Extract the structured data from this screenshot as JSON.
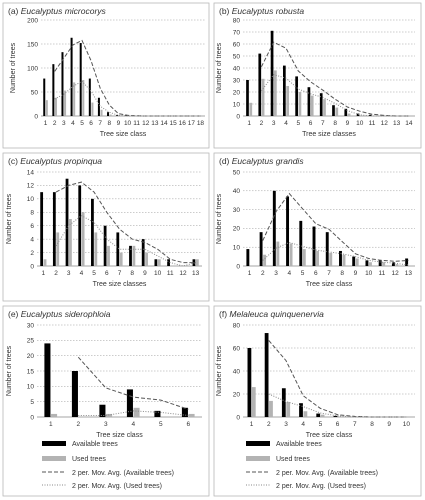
{
  "figure": {
    "legend": {
      "available": "Available trees",
      "used": "Used trees",
      "avg_available": "2 per. Mov. Avg. (Available trees)",
      "avg_used": "2 per. Mov. Avg. (Used trees)"
    }
  },
  "chart_data": [
    {
      "type": "bar",
      "panel_letter": "(a)",
      "species": "Eucalyptus microcorys",
      "xlabel": "Tree size class",
      "ylabel": "Number of trees",
      "ylim": [
        0,
        200
      ],
      "yticks": [
        0,
        50,
        100,
        150,
        200
      ],
      "categories": [
        "1",
        "2",
        "3",
        "4",
        "5",
        "6",
        "7",
        "8",
        "9",
        "10",
        "11",
        "12",
        "13",
        "14",
        "15",
        "16",
        "17",
        "18"
      ],
      "series": [
        {
          "name": "Available trees",
          "values": [
            78,
            108,
            133,
            163,
            152,
            78,
            38,
            8,
            2,
            1,
            0,
            0,
            0,
            0,
            0,
            0,
            0,
            0
          ]
        },
        {
          "name": "Used trees",
          "values": [
            33,
            38,
            53,
            70,
            75,
            28,
            13,
            3,
            0,
            0,
            0,
            0,
            0,
            0,
            0,
            0,
            0,
            0
          ]
        }
      ],
      "grid": true
    },
    {
      "type": "bar",
      "panel_letter": "(b)",
      "species": "Eucalyptus robusta",
      "xlabel": "Tree size classes",
      "ylabel": "Number of trees",
      "ylim": [
        0,
        80
      ],
      "yticks": [
        0,
        10,
        20,
        30,
        40,
        50,
        60,
        70,
        80
      ],
      "categories": [
        "1",
        "2",
        "3",
        "4",
        "5",
        "6",
        "7",
        "8",
        "9",
        "10",
        "11",
        "12",
        "13",
        "14"
      ],
      "series": [
        {
          "name": "Available trees",
          "values": [
            30,
            52,
            71,
            42,
            33,
            24,
            19,
            9,
            6,
            2,
            1,
            0,
            0,
            0
          ]
        },
        {
          "name": "Used trees",
          "values": [
            11,
            31,
            38,
            25,
            20,
            17,
            14,
            7,
            2,
            0,
            0,
            0,
            0,
            0
          ]
        }
      ],
      "grid": true
    },
    {
      "type": "bar",
      "panel_letter": "(c)",
      "species": "Eucalyptus propinqua",
      "xlabel": "Tree size classes",
      "ylabel": "Number of trees",
      "ylim": [
        0,
        14
      ],
      "yticks": [
        0,
        2,
        4,
        6,
        8,
        10,
        12,
        14
      ],
      "categories": [
        "1",
        "2",
        "3",
        "4",
        "5",
        "6",
        "7",
        "8",
        "9",
        "10",
        "11",
        "12",
        "13"
      ],
      "series": [
        {
          "name": "Available trees",
          "values": [
            11,
            11,
            13,
            12,
            10,
            6,
            5,
            3,
            4,
            1,
            1,
            0,
            1
          ]
        },
        {
          "name": "Used trees",
          "values": [
            1,
            5,
            7,
            8,
            5,
            3,
            2,
            3,
            2,
            1,
            0,
            0,
            1
          ]
        }
      ],
      "grid": true
    },
    {
      "type": "bar",
      "panel_letter": "(d)",
      "species": "Eucalyptus grandis",
      "xlabel": "Tree size class",
      "ylabel": "Number of trees",
      "ylim": [
        0,
        50
      ],
      "yticks": [
        0,
        10,
        20,
        30,
        40,
        50
      ],
      "categories": [
        "1",
        "2",
        "3",
        "4",
        "5",
        "6",
        "7",
        "8",
        "9",
        "10",
        "11",
        "12",
        "13"
      ],
      "series": [
        {
          "name": "Available trees",
          "values": [
            9,
            18,
            40,
            37,
            24,
            21,
            18,
            8,
            5,
            3,
            3,
            2,
            4
          ]
        },
        {
          "name": "Used trees",
          "values": [
            0,
            6,
            13,
            12,
            9,
            8,
            7,
            6,
            4,
            2,
            2,
            1,
            0
          ]
        }
      ],
      "grid": true
    },
    {
      "type": "bar",
      "panel_letter": "(e)",
      "species": "Eucalyptus siderophloia",
      "xlabel": "Tree size class",
      "ylabel": "Number of trees",
      "ylim": [
        0,
        30
      ],
      "yticks": [
        0,
        5,
        10,
        15,
        20,
        25,
        30
      ],
      "categories": [
        "1",
        "2",
        "3",
        "4",
        "5",
        "6"
      ],
      "series": [
        {
          "name": "Available trees",
          "values": [
            24,
            15,
            4,
            9,
            2,
            3
          ]
        },
        {
          "name": "Used trees",
          "values": [
            1,
            0,
            1,
            3,
            0,
            1
          ]
        }
      ],
      "grid": true
    },
    {
      "type": "bar",
      "panel_letter": "(f)",
      "species": "Melaleuca quinquenervia",
      "xlabel": "Tree size class",
      "ylabel": "Number of trees",
      "ylim": [
        0,
        80
      ],
      "yticks": [
        0,
        20,
        40,
        60,
        80
      ],
      "categories": [
        "1",
        "2",
        "3",
        "4",
        "5",
        "6",
        "7",
        "8",
        "9",
        "10"
      ],
      "series": [
        {
          "name": "Available trees",
          "values": [
            60,
            73,
            25,
            12,
            3,
            1,
            0,
            0,
            0,
            0
          ]
        },
        {
          "name": "Used trees",
          "values": [
            26,
            14,
            13,
            5,
            2,
            0,
            0,
            0,
            0,
            0
          ]
        }
      ],
      "grid": true
    }
  ]
}
